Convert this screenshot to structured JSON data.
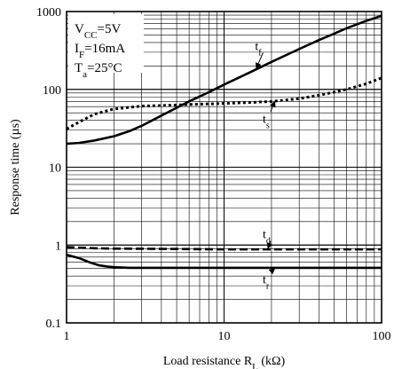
{
  "chart_data": {
    "type": "line",
    "xscale": "log",
    "yscale": "log",
    "xlim": [
      1,
      100
    ],
    "ylim": [
      0.1,
      1000
    ],
    "grid": true,
    "xlabel": {
      "main": "Load resistance R",
      "sub": "L",
      "unit": " (kΩ)"
    },
    "ylabel": "Response time (µs)",
    "x_ticks": [
      {
        "value": 1,
        "label": "1"
      },
      {
        "value": 10,
        "label": "10"
      },
      {
        "value": 100,
        "label": "100"
      }
    ],
    "y_ticks": [
      {
        "value": 0.1,
        "label": "0.1"
      },
      {
        "value": 1,
        "label": "1"
      },
      {
        "value": 10,
        "label": "10"
      },
      {
        "value": 100,
        "label": "100"
      },
      {
        "value": 1000,
        "label": "1000"
      }
    ],
    "conditions": [
      {
        "main": "V",
        "sub": "CC",
        "rest": "=5V"
      },
      {
        "main": "I",
        "sub": "F",
        "rest": "=16mA"
      },
      {
        "main": "T",
        "sub": "a",
        "rest": "=25°C"
      }
    ],
    "series": [
      {
        "name": "t_f",
        "label_main": "t",
        "label_sub": "f",
        "style": "solid",
        "x": [
          1,
          1.2,
          1.5,
          2,
          2.5,
          3,
          4,
          5,
          6,
          8,
          10,
          15,
          20,
          30,
          40,
          50,
          60,
          80,
          100
        ],
        "y": [
          20,
          20.5,
          22,
          25,
          29,
          34,
          46,
          58,
          70,
          92,
          115,
          170,
          225,
          330,
          430,
          520,
          610,
          760,
          880
        ]
      },
      {
        "name": "t_s",
        "label_main": "t",
        "label_sub": "s",
        "style": "dotted",
        "x": [
          1,
          1.2,
          1.5,
          2,
          3,
          4,
          5,
          6,
          8,
          10,
          15,
          20,
          30,
          40,
          50,
          60,
          80,
          100
        ],
        "y": [
          31,
          38,
          48,
          56,
          61,
          62,
          63,
          64,
          65,
          66,
          68,
          70,
          76,
          84,
          92,
          100,
          118,
          140
        ]
      },
      {
        "name": "t_d",
        "label_main": "t",
        "label_sub": "d",
        "style": "dashed",
        "x": [
          1,
          1.5,
          2,
          5,
          10,
          20,
          50,
          100
        ],
        "y": [
          0.94,
          0.91,
          0.9,
          0.89,
          0.88,
          0.88,
          0.88,
          0.88
        ]
      },
      {
        "name": "t_r",
        "label_main": "t",
        "label_sub": "r",
        "style": "solid",
        "x": [
          1,
          1.2,
          1.4,
          1.6,
          1.8,
          2,
          2.5,
          3,
          5,
          10,
          20,
          50,
          100
        ],
        "y": [
          0.75,
          0.68,
          0.6,
          0.55,
          0.53,
          0.52,
          0.51,
          0.51,
          0.51,
          0.51,
          0.51,
          0.51,
          0.51
        ]
      }
    ],
    "annotations": [
      {
        "series": "t_f",
        "label_x": 17,
        "label_y": 320,
        "arrow_to_x": 16,
        "arrow_to_y": 185
      },
      {
        "series": "t_s",
        "label_x": 19,
        "label_y": 37,
        "arrow_to_x": 21,
        "arrow_to_y": 70
      },
      {
        "series": "t_d",
        "label_x": 19,
        "label_y": 1.22,
        "arrow_to_x": 19,
        "arrow_to_y": 0.9
      },
      {
        "series": "t_r",
        "label_x": 19,
        "label_y": 0.32,
        "arrow_to_x": 21,
        "arrow_to_y": 0.5
      }
    ]
  }
}
